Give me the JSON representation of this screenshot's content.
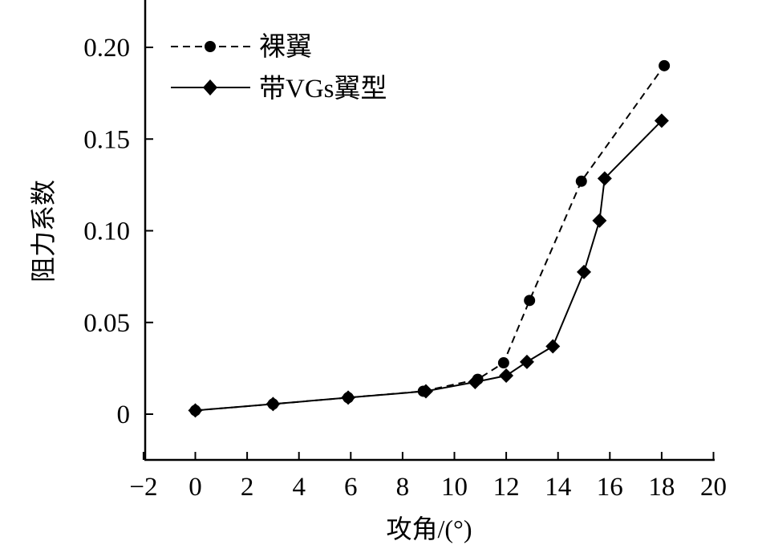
{
  "chart_data": {
    "type": "line",
    "title": "",
    "xlabel": "攻角/(°)",
    "ylabel": "阻力系数",
    "xlim": [
      -2,
      20
    ],
    "ylim": [
      -0.025,
      0.225
    ],
    "xticks": [
      -2,
      0,
      2,
      4,
      6,
      8,
      10,
      12,
      14,
      16,
      18,
      20
    ],
    "xtick_labels": [
      "−2",
      "0",
      "2",
      "4",
      "6",
      "8",
      "10",
      "12",
      "14",
      "16",
      "18",
      "20"
    ],
    "yticks": [
      0,
      0.05,
      0.1,
      0.15,
      0.2
    ],
    "ytick_labels": [
      "0",
      "0.05",
      "0.10",
      "0.15",
      "0.20"
    ],
    "grid": false,
    "legend_position": "top-left",
    "series": [
      {
        "name": "裸翼",
        "line_style": "dashed",
        "marker": "circle",
        "color": "#000000",
        "x": [
          0,
          3,
          5.9,
          8.8,
          10.9,
          11.9,
          12.9,
          14.9,
          18.1
        ],
        "y": [
          0.002,
          0.0055,
          0.009,
          0.0125,
          0.019,
          0.028,
          0.062,
          0.127,
          0.19
        ]
      },
      {
        "name": "带VGs翼型",
        "line_style": "solid",
        "marker": "diamond",
        "color": "#000000",
        "x": [
          0,
          3,
          5.9,
          8.9,
          10.8,
          12,
          12.8,
          13.8,
          15,
          15.6,
          15.8,
          18
        ],
        "y": [
          0.002,
          0.0055,
          0.009,
          0.0125,
          0.0175,
          0.021,
          0.0285,
          0.037,
          0.0775,
          0.1055,
          0.1285,
          0.16
        ]
      }
    ]
  }
}
